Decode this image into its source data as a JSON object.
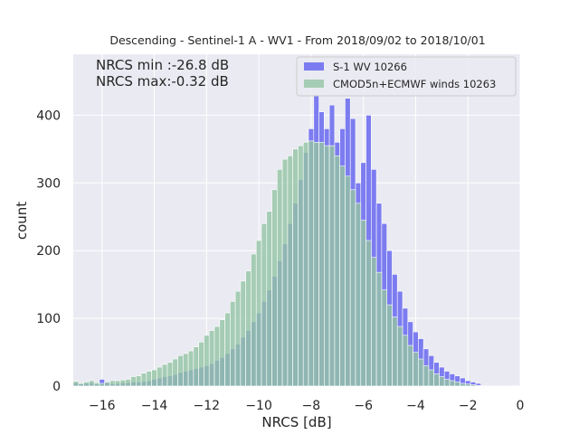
{
  "chart_data": {
    "type": "bar",
    "title": "Descending - Sentinel-1 A - WV1 - From 2018/09/02 to 2018/10/01",
    "xlabel": "NRCS [dB]",
    "ylabel": "count",
    "xlim": [
      -17.1,
      0.0
    ],
    "ylim": [
      0,
      490
    ],
    "xticks": [
      -16,
      -14,
      -12,
      -10,
      -8,
      -6,
      -4,
      -2,
      0
    ],
    "xtick_labels": [
      "−16",
      "−14",
      "−12",
      "−10",
      "−8",
      "−6",
      "−4",
      "−2",
      "0"
    ],
    "yticks": [
      0,
      100,
      200,
      300,
      400
    ],
    "ytick_labels": [
      "0",
      "100",
      "200",
      "300",
      "400"
    ],
    "grid": true,
    "legend_position": "top-right",
    "annotations": [
      "NRCS min :-26.8 dB",
      "NRCS max:-0.32 dB"
    ],
    "bin_start": -17.1,
    "bin_width": 0.2,
    "series": [
      {
        "name": "S-1 WV 10266",
        "color": "#7070f0",
        "values": [
          5,
          3,
          4,
          5,
          3,
          10,
          5,
          3,
          4,
          5,
          5,
          6,
          6,
          7,
          8,
          10,
          12,
          14,
          15,
          17,
          20,
          22,
          24,
          26,
          28,
          30,
          33,
          38,
          42,
          48,
          55,
          62,
          72,
          82,
          95,
          108,
          125,
          142,
          162,
          185,
          210,
          240,
          270,
          305,
          345,
          380,
          430,
          405,
          380,
          415,
          360,
          380,
          425,
          395,
          300,
          330,
          400,
          320,
          270,
          240,
          200,
          165,
          140,
          115,
          95,
          80,
          70,
          55,
          45,
          35,
          28,
          22,
          18,
          15,
          12,
          8,
          6,
          4
        ]
      },
      {
        "name": "CMOD5n+ECMWF winds 10263",
        "color": "#94c4a4",
        "values": [
          7,
          4,
          6,
          8,
          5,
          4,
          6,
          8,
          8,
          9,
          10,
          14,
          15,
          19,
          22,
          24,
          28,
          32,
          35,
          40,
          45,
          48,
          52,
          58,
          65,
          75,
          82,
          88,
          98,
          108,
          125,
          140,
          155,
          170,
          195,
          215,
          240,
          258,
          290,
          320,
          335,
          340,
          350,
          355,
          360,
          362,
          360,
          360,
          355,
          355,
          340,
          325,
          310,
          290,
          270,
          245,
          215,
          190,
          168,
          142,
          120,
          102,
          88,
          75,
          60,
          50,
          40,
          30,
          24,
          18,
          14,
          10,
          8,
          6,
          4,
          3,
          2,
          1
        ]
      }
    ]
  }
}
